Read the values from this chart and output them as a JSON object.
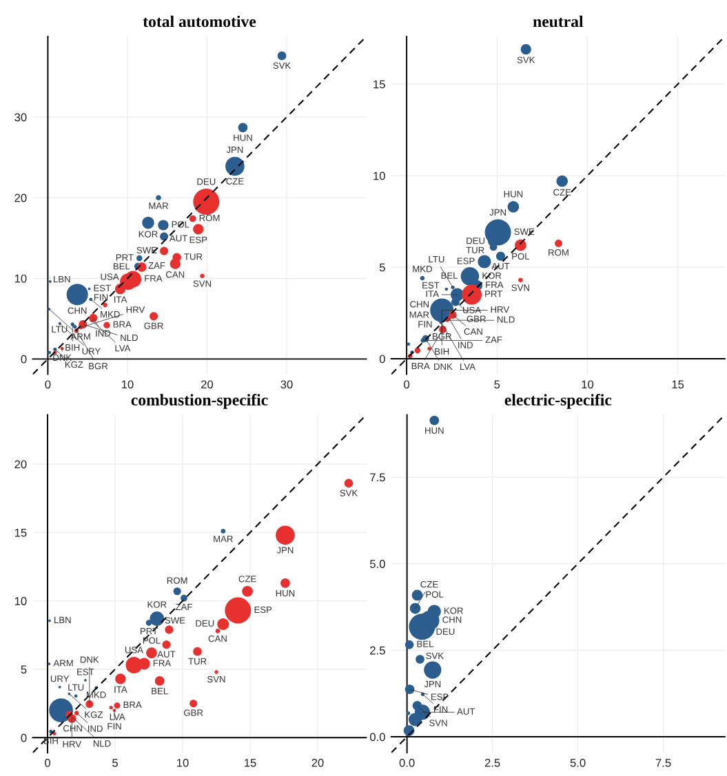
{
  "chart_data": [
    {
      "type": "bubble",
      "title": "total automotive",
      "xlim": [
        -1.9,
        40
      ],
      "ylim": [
        -1.9,
        40
      ],
      "xticks": [
        0,
        10,
        20,
        30
      ],
      "yticks": [
        0,
        10,
        20,
        30
      ],
      "grid": true,
      "series": [
        {
          "color": "#2c5d8f",
          "x": [
            23.5,
            3.7,
            12.6,
            14.5,
            24.5,
            29.4,
            14.6,
            11.3,
            11.5,
            13.9,
            3.1,
            3.4,
            0.9,
            0.2,
            5.4,
            1.5,
            0.3,
            5.2,
            0.15
          ],
          "values": [
            23.9,
            8.0,
            16.9,
            16.6,
            28.7,
            37.6,
            15.2,
            11.5,
            12.5,
            20.0,
            4.3,
            4.0,
            1.2,
            0.8,
            7.4,
            4.4,
            9.6,
            8.7,
            6.2
          ],
          "sizes": [
            0.53,
            0.67,
            0.21,
            0.16,
            0.13,
            0.11,
            0.1,
            0.07,
            0.05,
            0.04,
            0.02,
            0.02,
            0.02,
            0.015,
            0.015,
            0.012,
            0.01,
            0.01,
            0.01
          ]
        },
        {
          "color": "#e8302e",
          "x": [
            19.9,
            10.7,
            10.1,
            18.9,
            16.0,
            9.1,
            11.8,
            16.2,
            14.6,
            13.3,
            5.7,
            4.4,
            18.2,
            7.4,
            19.4,
            7.2,
            3.6,
            4.1,
            5.5,
            0.9,
            1.8
          ],
          "values": [
            19.5,
            9.9,
            9.6,
            16.1,
            11.8,
            8.7,
            11.4,
            12.6,
            13.4,
            5.3,
            5.1,
            4.3,
            17.4,
            4.2,
            10.3,
            6.7,
            3.5,
            3.9,
            4.8,
            0.8,
            1.3
          ],
          "sizes": [
            1,
            0.4,
            0.4,
            0.16,
            0.16,
            0.16,
            0.13,
            0.11,
            0.1,
            0.1,
            0.1,
            0.1,
            0.065,
            0.06,
            0.03,
            0.03,
            0.03,
            0.02,
            0.02,
            0.02,
            0.015
          ]
        },
        {
          "type": "line",
          "color": "#000000",
          "line_style": "dashed",
          "x": [
            -1.9,
            40
          ],
          "values": [
            -1.9,
            40
          ]
        }
      ],
      "annotations": [
        {
          "text": "SVK",
          "x": 29.4,
          "y": 37.6
        },
        {
          "text": "HUN",
          "x": 24.5,
          "y": 28.7
        },
        {
          "text": "CZE",
          "x": 23.5,
          "y": 23.9
        },
        {
          "text": "JPN",
          "x": 23.5,
          "y": 23.9
        },
        {
          "text": "DEU",
          "x": 19.9,
          "y": 19.5
        },
        {
          "text": "MAR",
          "x": 13.9,
          "y": 20.0
        },
        {
          "text": "ROM",
          "x": 18.2,
          "y": 17.4
        },
        {
          "text": "KOR",
          "x": 12.6,
          "y": 16.9
        },
        {
          "text": "POL",
          "x": 14.5,
          "y": 16.6
        },
        {
          "text": "ESP",
          "x": 18.9,
          "y": 16.1
        },
        {
          "text": "AUT",
          "x": 14.6,
          "y": 15.2
        },
        {
          "text": "SWE",
          "x": 14.6,
          "y": 13.4
        },
        {
          "text": "PRT",
          "x": 11.5,
          "y": 12.5
        },
        {
          "text": "ZAF",
          "x": 11.3,
          "y": 11.5
        },
        {
          "text": "TUR",
          "x": 16.2,
          "y": 12.6
        },
        {
          "text": "BEL",
          "x": 11.8,
          "y": 11.4
        },
        {
          "text": "CAN",
          "x": 16.0,
          "y": 11.8
        },
        {
          "text": "SVN",
          "x": 19.4,
          "y": 10.3
        },
        {
          "text": "USA",
          "x": 10.1,
          "y": 9.6
        },
        {
          "text": "FRA",
          "x": 10.7,
          "y": 9.9
        },
        {
          "text": "ITA",
          "x": 9.1,
          "y": 8.7
        },
        {
          "text": "LBN",
          "x": 0.3,
          "y": 9.6
        },
        {
          "text": "EST",
          "x": 5.2,
          "y": 8.7
        },
        {
          "text": "CHN",
          "x": 3.7,
          "y": 8.0
        },
        {
          "text": "MKD",
          "x": 5.4,
          "y": 7.4
        },
        {
          "text": "ARM",
          "x": 0.15,
          "y": 6.2
        },
        {
          "text": "FIN",
          "x": 7.2,
          "y": 6.7
        },
        {
          "text": "GBR",
          "x": 13.3,
          "y": 5.3
        },
        {
          "text": "IND",
          "x": 5.7,
          "y": 5.1
        },
        {
          "text": "BRA",
          "x": 7.4,
          "y": 4.2
        },
        {
          "text": "LTU",
          "x": 3.4,
          "y": 4.0
        },
        {
          "text": "BIH",
          "x": 3.1,
          "y": 4.3
        },
        {
          "text": "KGZ",
          "x": 0.9,
          "y": 1.2
        },
        {
          "text": "URY",
          "x": 1.5,
          "y": 4.4
        },
        {
          "text": "NLD",
          "x": 4.4,
          "y": 4.3
        },
        {
          "text": "LVA",
          "x": 5.5,
          "y": 4.8
        },
        {
          "text": "HRV",
          "x": 4.1,
          "y": 3.9
        },
        {
          "text": "BGR",
          "x": 3.6,
          "y": 3.5
        },
        {
          "text": "DNK",
          "x": 1.8,
          "y": 1.3
        }
      ]
    },
    {
      "type": "bubble",
      "title": "neutral",
      "xlim": [
        -0.85,
        17.6
      ],
      "ylim": [
        -0.85,
        17.6
      ],
      "xticks": [
        0,
        5,
        10,
        15
      ],
      "yticks": [
        0,
        5,
        10,
        15
      ],
      "grid": true,
      "series": [
        {
          "color": "#2c5d8f",
          "x": [
            5.05,
            1.95,
            3.5,
            4.3,
            2.8,
            8.6,
            5.9,
            6.6,
            3.9,
            4.75,
            5.2,
            2.7,
            4.8,
            1.05,
            0.87,
            0.9,
            2.55,
            1.9,
            0.3,
            2.2,
            0.1
          ],
          "values": [
            6.9,
            2.65,
            4.5,
            5.3,
            3.5,
            9.7,
            8.3,
            16.9,
            4.0,
            6.4,
            5.6,
            3.1,
            6.1,
            1.1,
            4.4,
            1.0,
            3.9,
            2.0,
            0.35,
            3.8,
            0.8
          ],
          "sizes": [
            1,
            0.81,
            0.49,
            0.25,
            0.25,
            0.19,
            0.19,
            0.16,
            0.16,
            0.12,
            0.12,
            0.1,
            0.08,
            0.07,
            0.03,
            0.03,
            0.02,
            0.02,
            0.02,
            0.015,
            0.015
          ]
        },
        {
          "color": "#e8302e",
          "x": [
            3.6,
            6.3,
            2.55,
            8.4,
            2.0,
            0.6,
            6.3,
            0.2,
            2.35,
            2.25,
            1.25
          ],
          "values": [
            3.5,
            6.2,
            2.4,
            6.3,
            1.6,
            0.45,
            4.3,
            0.15,
            2.2,
            2.1,
            0.55
          ],
          "sizes": [
            0.58,
            0.19,
            0.09,
            0.08,
            0.08,
            0.05,
            0.03,
            0.03,
            0.02,
            0.02,
            0.02
          ]
        },
        {
          "type": "line",
          "color": "#000000",
          "line_style": "dashed",
          "x": [
            -0.85,
            17.6
          ],
          "values": [
            -0.85,
            17.6
          ]
        }
      ],
      "annotations": [
        {
          "text": "SVK",
          "x": 6.6,
          "y": 16.9
        },
        {
          "text": "CZE",
          "x": 8.6,
          "y": 9.7
        },
        {
          "text": "HUN",
          "x": 5.9,
          "y": 8.3
        },
        {
          "text": "JPN",
          "x": 5.05,
          "y": 6.9
        },
        {
          "text": "SWE",
          "x": 5.05,
          "y": 6.9
        },
        {
          "text": "ROM",
          "x": 8.4,
          "y": 6.3
        },
        {
          "text": "POL",
          "x": 6.3,
          "y": 6.2
        },
        {
          "text": "DEU",
          "x": 4.75,
          "y": 6.4
        },
        {
          "text": "TUR",
          "x": 4.8,
          "y": 6.1
        },
        {
          "text": "ESP",
          "x": 4.3,
          "y": 5.3
        },
        {
          "text": "AUT",
          "x": 5.2,
          "y": 5.6
        },
        {
          "text": "SVN",
          "x": 6.3,
          "y": 4.3
        },
        {
          "text": "KOR",
          "x": 3.5,
          "y": 4.5
        },
        {
          "text": "BEL",
          "x": 3.5,
          "y": 4.5
        },
        {
          "text": "FRA",
          "x": 3.9,
          "y": 4.0
        },
        {
          "text": "USA",
          "x": 3.6,
          "y": 3.5
        },
        {
          "text": "PRT",
          "x": 3.6,
          "y": 3.5
        },
        {
          "text": "ITA",
          "x": 2.8,
          "y": 3.5
        },
        {
          "text": "GBR",
          "x": 2.7,
          "y": 3.1
        },
        {
          "text": "MAR",
          "x": 1.95,
          "y": 2.65
        },
        {
          "text": "MKD",
          "x": 0.87,
          "y": 4.4
        },
        {
          "text": "LTU",
          "x": 2.55,
          "y": 3.9
        },
        {
          "text": "EST",
          "x": 2.2,
          "y": 3.8
        },
        {
          "text": "CHN",
          "x": 1.95,
          "y": 2.65
        },
        {
          "text": "FIN",
          "x": 1.95,
          "y": 2.65
        },
        {
          "text": "BGR",
          "x": 1.95,
          "y": 2.65
        },
        {
          "text": "CAN",
          "x": 2.55,
          "y": 2.4
        },
        {
          "text": "BIH",
          "x": 1.95,
          "y": 2.65
        },
        {
          "text": "IND",
          "x": 2.35,
          "y": 2.2
        },
        {
          "text": "NLD",
          "x": 2.25,
          "y": 2.1
        },
        {
          "text": "HRV",
          "x": 1.95,
          "y": 2.65
        },
        {
          "text": "LVA",
          "x": 1.9,
          "y": 2.0
        },
        {
          "text": "BRA",
          "x": 2.0,
          "y": 1.6
        },
        {
          "text": "DNK",
          "x": 1.05,
          "y": 1.1
        },
        {
          "text": "ZAF",
          "x": 0.9,
          "y": 1.0
        }
      ]
    },
    {
      "type": "bubble",
      "title": "combustion-specific",
      "xlim": [
        -1.1,
        23.6
      ],
      "ylim": [
        -1.1,
        23.6
      ],
      "xticks": [
        0,
        5,
        10,
        15,
        20
      ],
      "yticks": [
        0,
        5,
        10,
        15,
        20
      ],
      "grid": true,
      "series": [
        {
          "color": "#2c5d8f",
          "x": [
            1.0,
            8.1,
            9.6,
            10.1,
            7.5,
            13.0,
            0.25,
            3.6,
            2.1,
            0.15,
            0.12,
            2.8,
            0.9,
            1.6
          ],
          "values": [
            2.0,
            8.7,
            10.7,
            10.2,
            8.4,
            15.1,
            0.45,
            3.65,
            3.05,
            8.55,
            5.4,
            4.2,
            3.7,
            3.2
          ],
          "sizes": [
            0.83,
            0.3,
            0.085,
            0.065,
            0.05,
            0.033,
            0.02,
            0.015,
            0.015,
            0.01,
            0.01,
            0.01,
            0.01,
            0.01
          ]
        },
        {
          "color": "#e8302e",
          "x": [
            14.1,
            17.6,
            6.4,
            13.0,
            7.15,
            7.7,
            14.8,
            5.4,
            17.6,
            8.3,
            22.3,
            11.1,
            1.8,
            9.0,
            8.8,
            10.8,
            3.1,
            1.6,
            5.15,
            12.6,
            2.15,
            12.5,
            4.7,
            4.95,
            0.5
          ],
          "values": [
            9.3,
            14.8,
            5.3,
            8.3,
            5.4,
            6.2,
            10.7,
            4.3,
            11.3,
            4.15,
            18.6,
            6.3,
            1.4,
            7.9,
            6.8,
            2.5,
            2.45,
            1.7,
            2.35,
            7.8,
            1.8,
            4.8,
            2.2,
            2.0,
            0.3
          ],
          "sizes": [
            1,
            0.53,
            0.4,
            0.2,
            0.2,
            0.17,
            0.17,
            0.16,
            0.13,
            0.13,
            0.11,
            0.11,
            0.11,
            0.1,
            0.1,
            0.085,
            0.085,
            0.075,
            0.056,
            0.03,
            0.03,
            0.02,
            0.02,
            0.015,
            0.02
          ]
        },
        {
          "type": "line",
          "color": "#000000",
          "line_style": "dashed",
          "x": [
            -1.1,
            23.6
          ],
          "values": [
            -1.1,
            23.6
          ]
        }
      ],
      "annotations": [
        {
          "text": "SVK",
          "x": 22.3,
          "y": 18.6
        },
        {
          "text": "JPN",
          "x": 17.6,
          "y": 14.8
        },
        {
          "text": "MAR",
          "x": 13.0,
          "y": 15.1
        },
        {
          "text": "HUN",
          "x": 17.6,
          "y": 11.3
        },
        {
          "text": "CZE",
          "x": 14.8,
          "y": 10.7
        },
        {
          "text": "ESP",
          "x": 14.1,
          "y": 9.3
        },
        {
          "text": "DEU",
          "x": 13.0,
          "y": 8.3
        },
        {
          "text": "CAN",
          "x": 12.6,
          "y": 7.8
        },
        {
          "text": "ROM",
          "x": 9.6,
          "y": 10.7
        },
        {
          "text": "ZAF",
          "x": 10.1,
          "y": 10.2
        },
        {
          "text": "KOR",
          "x": 8.1,
          "y": 8.7
        },
        {
          "text": "PRT",
          "x": 7.5,
          "y": 8.4
        },
        {
          "text": "SWE",
          "x": 9.0,
          "y": 7.9
        },
        {
          "text": "AUT",
          "x": 8.8,
          "y": 6.8
        },
        {
          "text": "POL",
          "x": 7.7,
          "y": 6.2
        },
        {
          "text": "TUR",
          "x": 11.1,
          "y": 6.3
        },
        {
          "text": "USA",
          "x": 6.4,
          "y": 5.3
        },
        {
          "text": "FRA",
          "x": 7.15,
          "y": 5.4
        },
        {
          "text": "SVN",
          "x": 12.5,
          "y": 4.8
        },
        {
          "text": "BEL",
          "x": 8.3,
          "y": 4.15
        },
        {
          "text": "ITA",
          "x": 5.4,
          "y": 4.3
        },
        {
          "text": "LBN",
          "x": 0.15,
          "y": 8.55
        },
        {
          "text": "ARM",
          "x": 0.12,
          "y": 5.4
        },
        {
          "text": "EST",
          "x": 2.8,
          "y": 4.2
        },
        {
          "text": "URY",
          "x": 0.9,
          "y": 3.7
        },
        {
          "text": "MKD",
          "x": 3.6,
          "y": 3.65
        },
        {
          "text": "LTU",
          "x": 2.1,
          "y": 3.05
        },
        {
          "text": "KGZ",
          "x": 1.6,
          "y": 3.2
        },
        {
          "text": "CHN",
          "x": 1.0,
          "y": 2.0
        },
        {
          "text": "GBR",
          "x": 10.8,
          "y": 2.5
        },
        {
          "text": "BRA",
          "x": 5.15,
          "y": 2.35
        },
        {
          "text": "LVA",
          "x": 4.7,
          "y": 2.2
        },
        {
          "text": "FIN",
          "x": 4.95,
          "y": 2.0
        },
        {
          "text": "DNK",
          "x": 3.1,
          "y": 2.45
        },
        {
          "text": "IND",
          "x": 2.15,
          "y": 1.8
        },
        {
          "text": "HRV",
          "x": 1.8,
          "y": 1.4
        },
        {
          "text": "NLD",
          "x": 1.6,
          "y": 1.7
        },
        {
          "text": "BIH",
          "x": 0.25,
          "y": 0.45
        }
      ]
    },
    {
      "type": "bubble",
      "title": "electric-specific",
      "xlim": [
        -0.46,
        9.3
      ],
      "ylim": [
        -0.46,
        9.3
      ],
      "xticks": [
        {
          "value": 0,
          "label": "0.0"
        },
        {
          "value": 2.5,
          "label": "2.5"
        },
        {
          "value": 5,
          "label": "5.0"
        },
        {
          "value": 7.5,
          "label": "7.5"
        }
      ],
      "yticks": [
        {
          "value": 0,
          "label": "0.0"
        },
        {
          "value": 2.5,
          "label": "2.5"
        },
        {
          "value": 5,
          "label": "5.0"
        },
        {
          "value": 7.5,
          "label": "7.5"
        }
      ],
      "grid": true,
      "series": [
        {
          "color": "#2c5d8f",
          "x": [
            0.44,
            0.66,
            0.75,
            0.45,
            0.8,
            0.24,
            0.3,
            0.24,
            0.06,
            0.8,
            0.08,
            0.3,
            0.07,
            0.38,
            0.46,
            0.04
          ],
          "values": [
            3.18,
            3.36,
            1.93,
            0.71,
            3.62,
            0.5,
            4.09,
            3.71,
            0.18,
            9.14,
            1.37,
            0.9,
            2.66,
            2.24,
            1.23,
            0.68
          ],
          "sizes": [
            1,
            0.56,
            0.44,
            0.34,
            0.25,
            0.25,
            0.17,
            0.17,
            0.17,
            0.13,
            0.13,
            0.13,
            0.11,
            0.11,
            0.02,
            0.02
          ]
        },
        {
          "type": "line",
          "color": "#000000",
          "line_style": "dashed",
          "x": [
            -0.46,
            9.3
          ],
          "values": [
            -0.46,
            9.3
          ]
        }
      ],
      "annotations": [
        {
          "text": "HUN",
          "x": 0.8,
          "y": 9.14
        },
        {
          "text": "POL",
          "x": 0.3,
          "y": 4.09
        },
        {
          "text": "KOR",
          "x": 0.8,
          "y": 3.62
        },
        {
          "text": "CZE",
          "x": 0.24,
          "y": 3.71
        },
        {
          "text": "CHN",
          "x": 0.66,
          "y": 3.36
        },
        {
          "text": "DEU",
          "x": 0.44,
          "y": 3.18
        },
        {
          "text": "BEL",
          "x": 0.07,
          "y": 2.66
        },
        {
          "text": "SVK",
          "x": 0.38,
          "y": 2.24
        },
        {
          "text": "JPN",
          "x": 0.75,
          "y": 1.93
        },
        {
          "text": "ESP",
          "x": 0.08,
          "y": 1.37
        },
        {
          "text": "FIN",
          "x": 0.46,
          "y": 1.23
        },
        {
          "text": "SVN",
          "x": 0.3,
          "y": 0.9
        },
        {
          "text": "AUT",
          "x": 0.45,
          "y": 0.71
        }
      ]
    }
  ]
}
